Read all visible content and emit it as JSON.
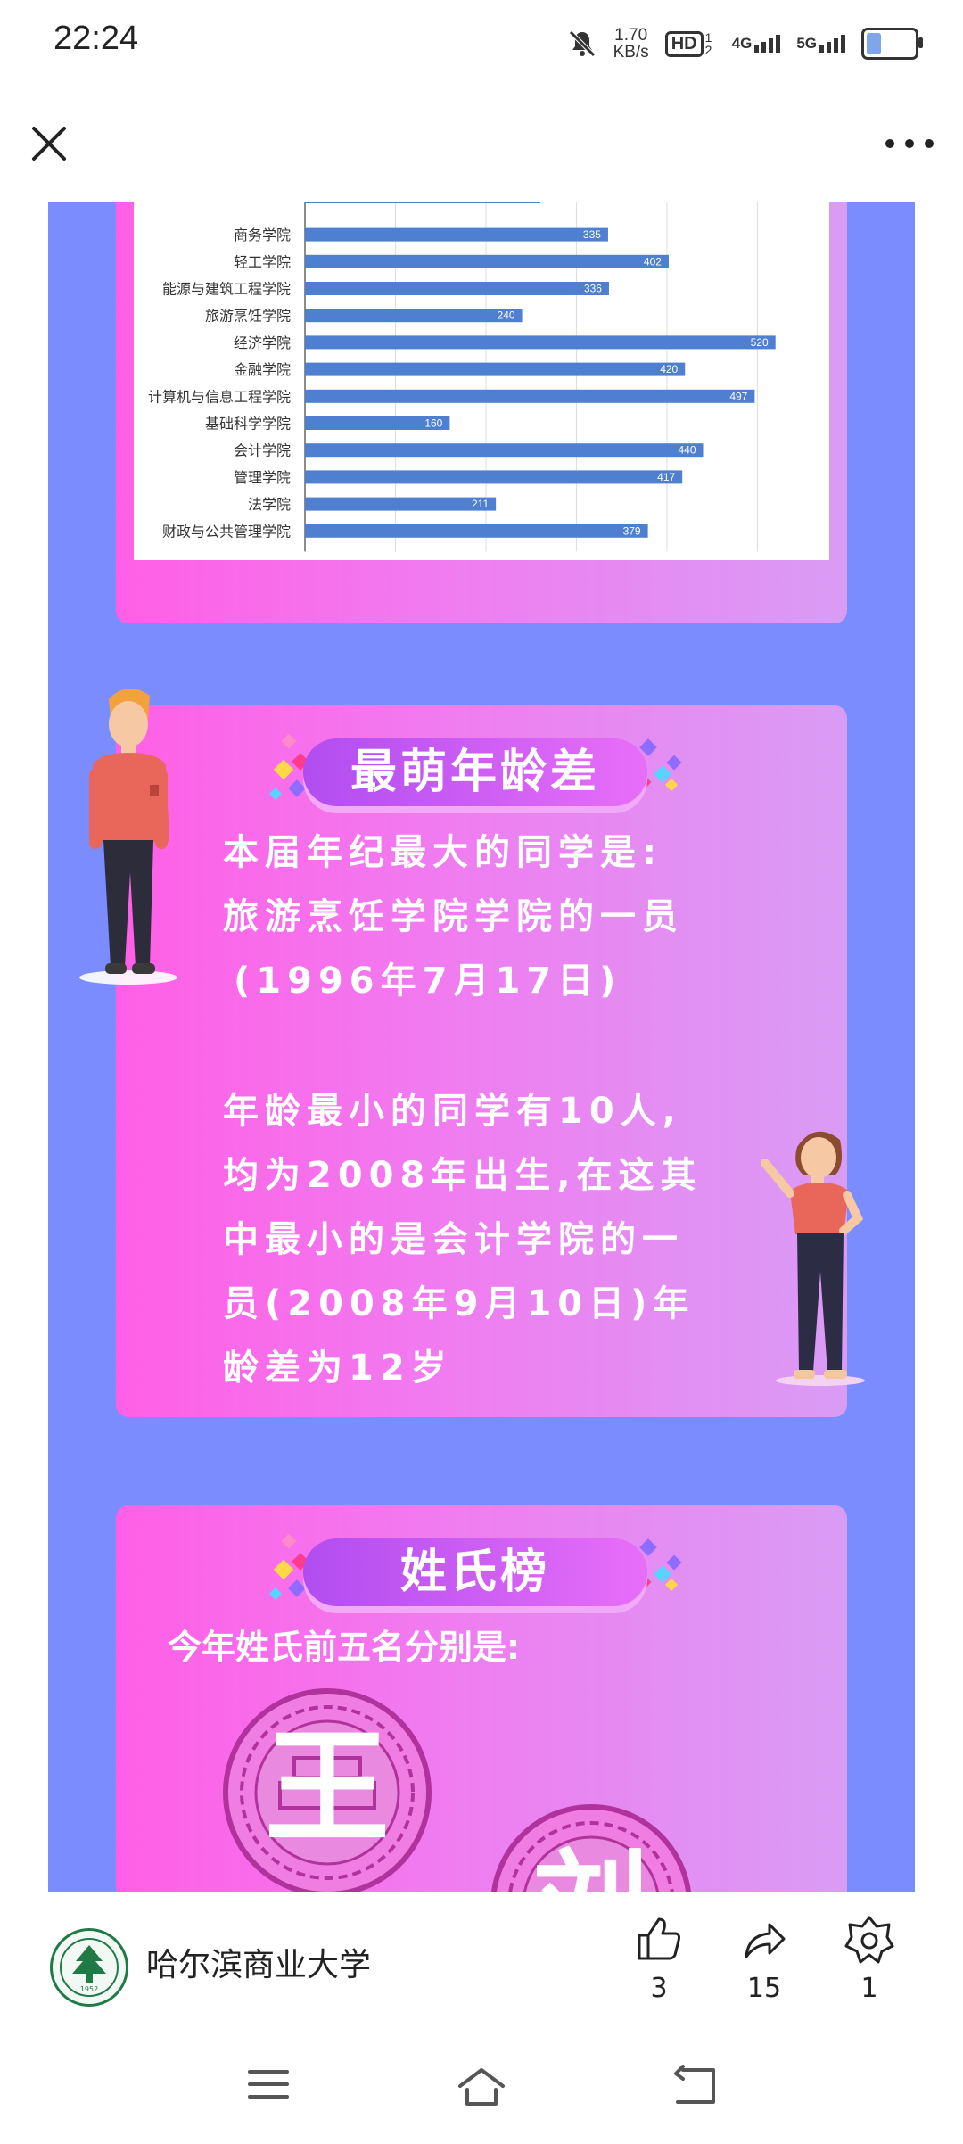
{
  "status_bar": {
    "time": "22:24",
    "net_speed_value": "1.70",
    "net_speed_unit": "KB/s",
    "hd_label": "HD",
    "hd_sub": "1 2",
    "sig1_label": "4G",
    "sig2_label": "5G",
    "battery_level": 0.3,
    "icons": [
      "bell-muted-icon",
      "hd-voice-icon",
      "signal-4g-icon",
      "signal-5g-icon",
      "battery-icon"
    ]
  },
  "top_bar": {
    "icons": [
      "close-icon",
      "more-icon"
    ]
  },
  "chart_data": {
    "type": "bar",
    "orientation": "horizontal",
    "categories": [
      "商务学院",
      "轻工学院",
      "能源与建筑工程学院",
      "旅游烹饪学院",
      "经济学院",
      "金融学院",
      "计算机与信息工程学院",
      "基础科学学院",
      "会计学院",
      "管理学院",
      "法学院",
      "财政与公共管理学院"
    ],
    "values": [
      335,
      402,
      336,
      240,
      520,
      420,
      497,
      160,
      440,
      417,
      211,
      379
    ],
    "x_ticks": [
      "0",
      "100",
      "200",
      "300",
      "400",
      "500"
    ],
    "xlim": [
      0,
      540
    ],
    "grid": true,
    "bar_color": "#4f7fd0"
  },
  "age_section": {
    "title": "最萌年龄差",
    "lines": [
      "本届年纪最大的同学是:",
      "旅游烹饪学院学院的一员",
      "(1996年7月17日)",
      "年龄最小的同学有10人,",
      "均为2008年出生,在这其",
      "中最小的是会计学院的一",
      "员(2008年9月10日)年",
      "龄差为12岁"
    ]
  },
  "name_section": {
    "title": "姓氏榜",
    "intro": "今年姓氏前五名分别是:",
    "seal_1": "王",
    "seal_2": "刘"
  },
  "bottom_bar": {
    "account_name": "哈尔滨商业大学",
    "logo_year": "1952",
    "like_count": "3",
    "share_count": "15",
    "favorite_count": "1"
  },
  "nav_bar": {
    "icons": [
      "menu-icon",
      "home-icon",
      "back-icon"
    ]
  }
}
